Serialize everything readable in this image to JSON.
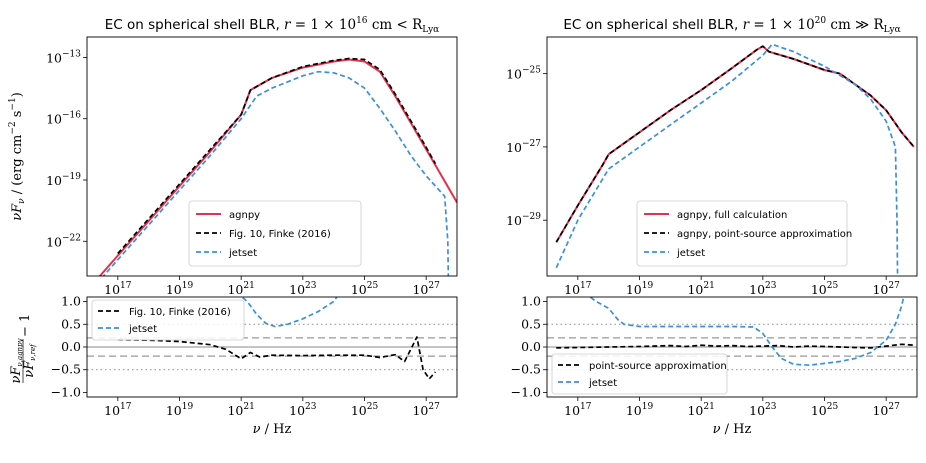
{
  "colors": {
    "agnpy": "#e6304a",
    "ref": "#000000",
    "jetset": "#3a8fe0"
  },
  "chart_data": [
    {
      "id": "top-left",
      "type": "line",
      "title": "EC on spherical shell BLR, r = 1 × 10^16 cm < R_Lyα",
      "title_parts": [
        "EC on spherical shell BLR, ",
        "r",
        " = 1 × 10",
        "16",
        " cm < R",
        "Lyα"
      ],
      "xscale": "log",
      "yscale": "log",
      "xlim": [
        1e+16,
        1e+28
      ],
      "ylim": [
        2e-24,
        1e-12
      ],
      "xticks": [
        17,
        19,
        21,
        23,
        25,
        27
      ],
      "yticks": [
        -22,
        -19,
        -16,
        -13
      ],
      "ylabel": "νF_ν / (erg cm^-2 s^-1)",
      "ylabel_parts": [
        "νF",
        "ν",
        " / (erg cm",
        "−2",
        " s",
        "−1",
        ")"
      ],
      "legend_position": "lower center",
      "series": [
        {
          "name": "agnpy",
          "style": "solid",
          "x": [
            16.3,
            17,
            18,
            19,
            20,
            21,
            21.3,
            22,
            23,
            24,
            24.5,
            25,
            25.5,
            26,
            26.5,
            27,
            27.5,
            28
          ],
          "y": [
            -23.9,
            -22.7,
            -21.0,
            -19.3,
            -17.6,
            -15.8,
            -14.6,
            -14.0,
            -13.5,
            -13.2,
            -13.1,
            -13.2,
            -13.7,
            -14.9,
            -16.2,
            -17.5,
            -18.8,
            -20.1
          ]
        },
        {
          "name": "Fig. 10, Finke (2016)",
          "style": "dashed",
          "x": [
            17,
            18,
            19,
            20,
            21,
            21.3,
            22,
            23,
            24,
            24.5,
            25,
            25.5,
            26,
            26.5,
            27,
            27.3
          ],
          "y": [
            -22.6,
            -20.9,
            -19.2,
            -17.5,
            -15.8,
            -14.6,
            -14.0,
            -13.45,
            -13.15,
            -13.05,
            -13.1,
            -13.6,
            -14.8,
            -16.1,
            -17.4,
            -18.2
          ]
        },
        {
          "name": "jetset",
          "style": "dashed",
          "x": [
            16.3,
            17,
            18,
            19,
            20,
            21,
            21.5,
            22,
            23,
            23.5,
            24,
            24.5,
            25,
            25.5,
            26,
            26.5,
            27,
            27.6,
            27.7,
            27.72
          ],
          "y": [
            -24.1,
            -22.9,
            -21.2,
            -19.5,
            -17.8,
            -16.0,
            -14.9,
            -14.5,
            -13.9,
            -13.7,
            -13.75,
            -14.0,
            -14.5,
            -15.5,
            -16.6,
            -17.8,
            -18.8,
            -19.8,
            -22.0,
            -24.0
          ]
        }
      ],
      "residual": {
        "ylabel": "νF_ν,agnpy / νF_ν,ref − 1",
        "ylabel_parts": [
          "νF",
          "ν,agnpy",
          "νF",
          "ν,ref",
          " − 1"
        ],
        "xlabel": "ν / Hz",
        "ylim": [
          -1.1,
          1.1
        ],
        "yticks": [
          -1.0,
          -0.5,
          0.0,
          0.5,
          1.0
        ],
        "ytick_labels": [
          "−1.0",
          "−0.5",
          "0.0",
          "0.5",
          "1.0"
        ],
        "legend_position": "upper left",
        "series": [
          {
            "name": "Fig. 10, Finke (2016)",
            "style": "dashed",
            "x": [
              17,
              18,
              19,
              20,
              20.5,
              21,
              21.3,
              21.6,
              22,
              23,
              24,
              25,
              25.5,
              26,
              26.3,
              26.5,
              26.7,
              26.9,
              27.1,
              27.3
            ],
            "y": [
              0.16,
              0.15,
              0.12,
              0.05,
              -0.05,
              -0.26,
              -0.12,
              -0.22,
              -0.18,
              -0.19,
              -0.18,
              -0.18,
              -0.23,
              -0.17,
              -0.32,
              -0.05,
              0.22,
              -0.5,
              -0.7,
              -0.55
            ]
          },
          {
            "name": "jetset",
            "style": "dashed",
            "x": [
              20.85,
              21.2,
              21.5,
              21.8,
              22.1,
              22.5,
              23,
              23.5,
              24,
              24.2
            ],
            "y": [
              1.2,
              1.0,
              0.72,
              0.52,
              0.45,
              0.5,
              0.62,
              0.78,
              1.0,
              1.2
            ]
          }
        ]
      }
    },
    {
      "id": "top-right",
      "type": "line",
      "title": "EC on spherical shell BLR, r = 1 × 10^20 cm ≫ R_Lyα",
      "title_parts": [
        "EC on spherical shell BLR, ",
        "r",
        " = 1 × 10",
        "20",
        " cm ≫ R",
        "Lyα"
      ],
      "xscale": "log",
      "yscale": "log",
      "xlim": [
        1e+16,
        1e+28
      ],
      "ylim": [
        3e-31,
        1e-24
      ],
      "xticks": [
        17,
        19,
        21,
        23,
        25,
        27
      ],
      "yticks": [
        -29,
        -27,
        -25
      ],
      "legend_position": "lower center",
      "series": [
        {
          "name": "agnpy, full calculation",
          "style": "solid",
          "x": [
            16.3,
            17,
            17.8,
            18,
            19,
            20,
            21,
            22,
            22.8,
            23,
            23.2,
            24,
            25,
            25.5,
            26,
            26.5,
            27,
            27.5,
            27.9
          ],
          "y": [
            -29.6,
            -28.6,
            -27.5,
            -27.2,
            -26.6,
            -26.0,
            -25.45,
            -24.85,
            -24.35,
            -24.25,
            -24.4,
            -24.6,
            -24.9,
            -25.0,
            -25.3,
            -25.6,
            -26.0,
            -26.6,
            -27.0
          ]
        },
        {
          "name": "agnpy, point-source approximation",
          "style": "dashed",
          "x": [
            16.3,
            17,
            17.8,
            18,
            19,
            20,
            21,
            22,
            22.8,
            23,
            23.2,
            24,
            25,
            25.5,
            26,
            26.5,
            27,
            27.5,
            27.9
          ],
          "y": [
            -29.6,
            -28.6,
            -27.5,
            -27.2,
            -26.6,
            -26.0,
            -25.45,
            -24.85,
            -24.35,
            -24.25,
            -24.4,
            -24.6,
            -24.9,
            -25.0,
            -25.3,
            -25.6,
            -26.0,
            -26.6,
            -27.0
          ]
        },
        {
          "name": "jetset",
          "style": "dashed",
          "x": [
            16.3,
            17,
            18,
            19,
            20,
            21,
            22,
            23,
            23.3,
            24,
            25,
            26,
            26.5,
            27,
            27.3,
            27.35,
            27.38
          ],
          "y": [
            -30.3,
            -29.0,
            -27.6,
            -27.0,
            -26.4,
            -25.8,
            -25.2,
            -24.5,
            -24.2,
            -24.4,
            -24.8,
            -25.3,
            -25.7,
            -26.3,
            -27.0,
            -29.0,
            -31.5
          ]
        }
      ],
      "residual": {
        "xlabel": "ν / Hz",
        "ylim": [
          -1.1,
          1.1
        ],
        "yticks": [
          -1.0,
          -0.5,
          0.0,
          0.5,
          1.0
        ],
        "ytick_labels": [
          "−1.0",
          "−0.5",
          "0.0",
          "0.5",
          "1.0"
        ],
        "legend_position": "lower left",
        "series": [
          {
            "name": "point-source approximation",
            "style": "dashed",
            "x": [
              16.3,
              17,
              18,
              19,
              20,
              20.5,
              21,
              21.5,
              22,
              22.5,
              23,
              23.5,
              24,
              24.5,
              25,
              25.5,
              26,
              26.5,
              27,
              27.5,
              27.9
            ],
            "y": [
              -0.02,
              -0.01,
              0.0,
              0.01,
              0.03,
              0.01,
              0.04,
              0.02,
              0.03,
              0.01,
              0.02,
              0.03,
              0.0,
              0.02,
              0.01,
              0.0,
              -0.01,
              -0.02,
              0.02,
              0.06,
              0.04
            ]
          },
          {
            "name": "jetset",
            "style": "dashed",
            "x": [
              17.2,
              17.6,
              18.0,
              18.3,
              18.5,
              19,
              20,
              21,
              22,
              22.7,
              23,
              23.3,
              23.6,
              24,
              24.5,
              25,
              25.5,
              26,
              26.5,
              27,
              27.3,
              27.5,
              27.6
            ],
            "y": [
              1.2,
              1.0,
              0.85,
              0.6,
              0.5,
              0.45,
              0.45,
              0.45,
              0.45,
              0.44,
              0.3,
              0.0,
              -0.25,
              -0.38,
              -0.4,
              -0.36,
              -0.32,
              -0.25,
              -0.12,
              0.15,
              0.5,
              0.9,
              1.2
            ]
          }
        ]
      }
    }
  ]
}
